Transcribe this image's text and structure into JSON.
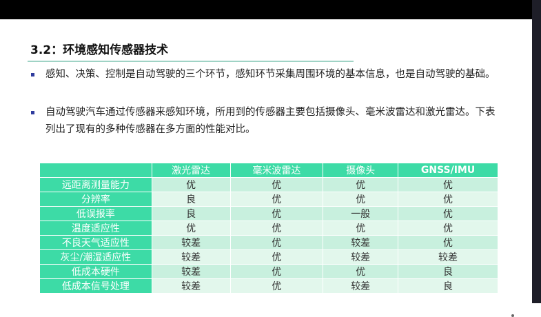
{
  "slide": {
    "title": "3.2：环境感知传感器技术",
    "bullets": [
      "感知、决策、控制是自动驾驶的三个环节，感知环节采集周围环境的基本信息，也是自动驾驶的基础。",
      "自动驾驶汽车通过传感器来感知环境，所用到的传感器主要包括摄像头、毫米波雷达和激光雷达。下表列出了现有的多种传感器在多方面的性能对比。"
    ],
    "table": {
      "headers": [
        "",
        "激光雷达",
        "毫米波雷达",
        "摄像头",
        "GNSS/IMU"
      ],
      "rows": [
        [
          "远距离测量能力",
          "优",
          "优",
          "优",
          "优"
        ],
        [
          "分辨率",
          "良",
          "优",
          "优",
          "优"
        ],
        [
          "低误报率",
          "良",
          "优",
          "一般",
          "优"
        ],
        [
          "温度适应性",
          "优",
          "优",
          "优",
          "优"
        ],
        [
          "不良天气适应性",
          "较差",
          "优",
          "较差",
          "优"
        ],
        [
          "灰尘/潮湿适应性",
          "较差",
          "优",
          "较差",
          "较差"
        ],
        [
          "低成本硬件",
          "较差",
          "优",
          "优",
          "良"
        ],
        [
          "低成本信号处理",
          "较差",
          "优",
          "较差",
          "良"
        ]
      ]
    }
  },
  "colors": {
    "header_bg": "#3ddba6",
    "row_odd": "#c8f0de",
    "row_even": "#e2f7ec",
    "bullet": "#2f3c9e"
  }
}
